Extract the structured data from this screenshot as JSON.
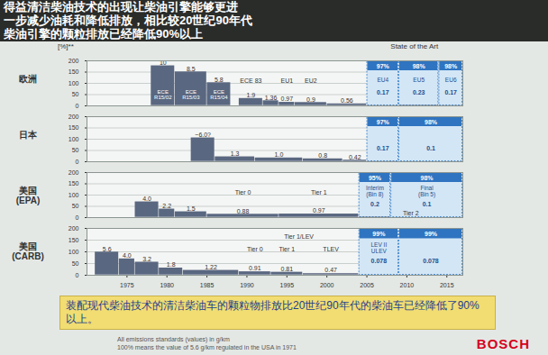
{
  "header": [
    "得益清洁柴油技术的出现让柴油引擎能够更进",
    "一步减少油耗和降低排放，相比较20世纪90年代",
    "柴油引擎的颗粒排放已经降低90%以上"
  ],
  "y_unit": "[%]**",
  "state_of_the_art": "State of the Art",
  "caption": "装配现代柴油技术的清洁柴油车的颗粒物排放比20世纪90年代的柴油车已经降低了90%以上。",
  "footnotes": [
    "All emissions standards (values) in g/km",
    "100% means the value of 5.6 g/km regulated in the USA in 1971"
  ],
  "logo": "BOSCH",
  "chart_data": [
    {
      "type": "bar",
      "title": "欧洲",
      "color": "#5a6780",
      "grid": true,
      "tick_labels": "y",
      "xlim": [
        1970,
        2017
      ],
      "ylim": [
        0,
        200
      ],
      "yticks": [
        0,
        50,
        100,
        150,
        200
      ],
      "x_start": [
        1978,
        1981,
        1985,
        1989,
        1992,
        1994,
        1996,
        2000,
        2005,
        2009,
        2014
      ],
      "x_end": [
        1981,
        1985,
        1988,
        1992,
        1994,
        1996,
        2000,
        2005,
        2009,
        2014,
        2017
      ],
      "values": [
        179,
        152,
        104,
        34,
        24,
        17,
        16,
        10,
        3,
        4,
        3
      ],
      "labels": [
        "10",
        "8.5",
        "5.8",
        "1.9",
        "1.36",
        "0.97",
        "0.9",
        "0.56",
        "0.17",
        "0.23",
        "0.17"
      ],
      "stages": [
        "ECE\nR15/02",
        "ECE\nR15/03",
        "ECE\nR15/04",
        "ECE 83",
        null,
        "EU1",
        "EU2",
        null,
        "EU4",
        "EU5",
        "EU6"
      ],
      "reductions": [
        null,
        null,
        null,
        null,
        null,
        null,
        null,
        null,
        "97%",
        "98%",
        "98%"
      ],
      "groups": []
    },
    {
      "type": "bar",
      "title": "日本",
      "color": "#5a6780",
      "grid": true,
      "tick_labels": "y",
      "xlim": [
        1970,
        2017
      ],
      "ylim": [
        0,
        200
      ],
      "yticks": [
        0,
        50,
        100,
        150,
        200
      ],
      "x_start": [
        1983,
        1986,
        1991,
        1997,
        2002,
        2005,
        2009
      ],
      "x_end": [
        1986,
        1991,
        1997,
        2002,
        2005,
        2009,
        2017
      ],
      "values": [
        107,
        23,
        18,
        14,
        8,
        3,
        2
      ],
      "labels": [
        "~6.0?",
        "1.3",
        "1.0",
        "0.8",
        "0.42",
        "0.17",
        "0.1"
      ],
      "stages": [
        null,
        null,
        null,
        null,
        null,
        null,
        null
      ],
      "reductions": [
        null,
        null,
        null,
        null,
        null,
        "97%",
        "98%"
      ],
      "groups": []
    },
    {
      "type": "bar",
      "title": "美国\n(EPA)",
      "color": "#5a6780",
      "grid": true,
      "tick_labels": "y",
      "xlim": [
        1970,
        2017
      ],
      "ylim": [
        0,
        200
      ],
      "yticks": [
        0,
        50,
        100,
        150,
        200
      ],
      "x_start": [
        1976,
        1979,
        1981,
        1985,
        1994,
        2004,
        2008
      ],
      "x_end": [
        1979,
        1981,
        1985,
        1994,
        2004,
        2008,
        2017
      ],
      "values": [
        71,
        39,
        27,
        16,
        17,
        4,
        2
      ],
      "labels": [
        "4.0",
        "2.2",
        "1.5",
        "0.88",
        "0.97",
        "0.2",
        "0.1"
      ],
      "stages": [
        null,
        null,
        null,
        "Tier 0",
        "Tier 1",
        "Interim\n(Bin 8)",
        "Final\n(Bin 5)"
      ],
      "reductions": [
        null,
        null,
        null,
        null,
        null,
        "95%",
        "98%"
      ],
      "groups": [
        {
          "text": "Tier 2",
          "from": 2004,
          "to": 2017
        }
      ]
    },
    {
      "type": "bar",
      "title": "美国\n(CARB)",
      "color": "#5a6780",
      "grid": true,
      "tick_labels": true,
      "xlim": [
        1970,
        2017
      ],
      "xticks": [
        1975,
        1980,
        1985,
        1990,
        1995,
        2000,
        2005,
        2010,
        2015
      ],
      "ylim": [
        0,
        200
      ],
      "yticks": [
        0,
        50,
        100,
        150,
        200
      ],
      "x_start": [
        1971,
        1974,
        1976,
        1979,
        1982,
        1989,
        1993,
        1997,
        2004,
        2009
      ],
      "x_end": [
        1974,
        1976,
        1979,
        1982,
        1989,
        1993,
        1997,
        2004,
        2009,
        2017
      ],
      "values": [
        100,
        71,
        57,
        32,
        22,
        16,
        14,
        8,
        1.4,
        1.4
      ],
      "labels": [
        "5.6",
        "4.0",
        "3.2",
        "1.8",
        "1.22",
        "0.91",
        "0.81",
        "0.47",
        "0.078",
        "0.078"
      ],
      "stages": [
        null,
        null,
        null,
        null,
        null,
        "Tier 0",
        "Tier 1",
        "TLEV",
        "LEV II\nULEV",
        null
      ],
      "reductions": [
        null,
        null,
        null,
        null,
        null,
        null,
        null,
        null,
        "99%",
        "99%"
      ],
      "groups": [
        {
          "text": "Tier 1/LEV",
          "from": 1989,
          "to": 2004
        }
      ]
    }
  ]
}
